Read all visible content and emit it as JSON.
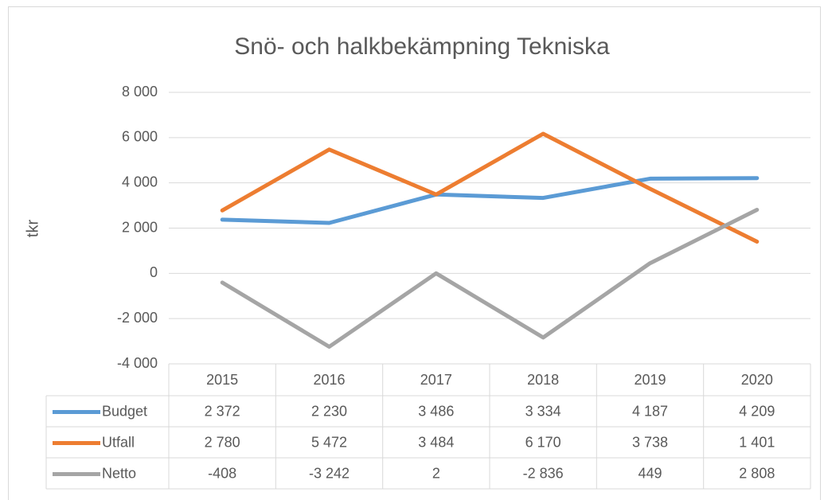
{
  "chart_data": {
    "type": "line",
    "title": "Snö- och halkbekämpning Tekniska",
    "y_label": "tkr",
    "categories": [
      "2015",
      "2016",
      "2017",
      "2018",
      "2019",
      "2020"
    ],
    "series": [
      {
        "name": "Budget",
        "color": "#5b9bd5",
        "values": [
          2372,
          2230,
          3486,
          3334,
          4187,
          4209
        ],
        "value_labels": [
          "2 372",
          "2 230",
          "3 486",
          "3 334",
          "4 187",
          "4 209"
        ]
      },
      {
        "name": "Utfall",
        "color": "#ed7d31",
        "values": [
          2780,
          5472,
          3484,
          6170,
          3738,
          1401
        ],
        "value_labels": [
          "2 780",
          "5 472",
          "3 484",
          "6 170",
          "3 738",
          "1 401"
        ]
      },
      {
        "name": "Netto",
        "color": "#a5a5a5",
        "values": [
          -408,
          -3242,
          2,
          -2836,
          449,
          2808
        ],
        "value_labels": [
          "-408",
          "-3 242",
          "2",
          "-2 836",
          "449",
          "2 808"
        ]
      }
    ],
    "ylim": [
      -4000,
      8000
    ],
    "yticks": [
      {
        "value": -4000,
        "label": "-4 000"
      },
      {
        "value": -2000,
        "label": "-2 000"
      },
      0,
      {
        "value": 2000,
        "label": "2 000"
      },
      {
        "value": 4000,
        "label": "4 000"
      },
      {
        "value": 6000,
        "label": "6 000"
      },
      {
        "value": 8000,
        "label": "8 000"
      }
    ],
    "grid": true
  }
}
